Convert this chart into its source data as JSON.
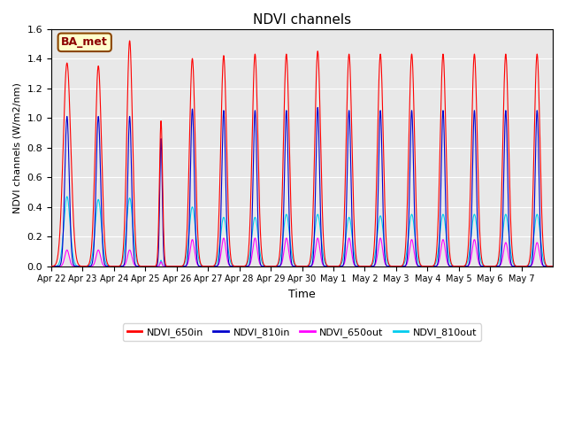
{
  "title": "NDVI channels",
  "xlabel": "Time",
  "ylabel": "NDVI channels (W/m2/nm)",
  "ylim": [
    0,
    1.6
  ],
  "background_color": "#e8e8e8",
  "annotation_text": "BA_met",
  "series": {
    "NDVI_650in": {
      "color": "#ff0000",
      "linewidth": 0.8
    },
    "NDVI_810in": {
      "color": "#0000cc",
      "linewidth": 0.8
    },
    "NDVI_650out": {
      "color": "#ff00ff",
      "linewidth": 0.8
    },
    "NDVI_810out": {
      "color": "#00ccee",
      "linewidth": 0.8
    }
  },
  "xtick_labels": [
    "Apr 22",
    "Apr 23",
    "Apr 24",
    "Apr 25",
    "Apr 26",
    "Apr 27",
    "Apr 28",
    "Apr 29",
    "Apr 30",
    "May 1",
    "May 2",
    "May 3",
    "May 4",
    "May 5",
    "May 6",
    "May 7"
  ],
  "num_days": 16,
  "h_650in": [
    1.37,
    1.35,
    1.52,
    0.98,
    1.4,
    1.42,
    1.43,
    1.43,
    1.45,
    1.43,
    1.43,
    1.43,
    1.43,
    1.43,
    1.43,
    1.43
  ],
  "h_810in": [
    1.01,
    1.01,
    1.01,
    0.86,
    1.06,
    1.05,
    1.05,
    1.05,
    1.07,
    1.05,
    1.05,
    1.05,
    1.05,
    1.05,
    1.05,
    1.05
  ],
  "h_650out": [
    0.11,
    0.11,
    0.11,
    0.03,
    0.18,
    0.19,
    0.19,
    0.19,
    0.19,
    0.19,
    0.19,
    0.18,
    0.18,
    0.18,
    0.16,
    0.16
  ],
  "h_810out": [
    0.47,
    0.45,
    0.46,
    0.04,
    0.4,
    0.33,
    0.33,
    0.35,
    0.35,
    0.33,
    0.34,
    0.35,
    0.35,
    0.35,
    0.35,
    0.35
  ],
  "w_650in": [
    0.12,
    0.1,
    0.09,
    0.05,
    0.09,
    0.09,
    0.09,
    0.09,
    0.09,
    0.09,
    0.09,
    0.09,
    0.09,
    0.09,
    0.09,
    0.09
  ],
  "w_810in": [
    0.07,
    0.07,
    0.06,
    0.04,
    0.06,
    0.06,
    0.06,
    0.06,
    0.06,
    0.06,
    0.06,
    0.06,
    0.06,
    0.06,
    0.06,
    0.06
  ],
  "w_650out": [
    0.07,
    0.07,
    0.07,
    0.03,
    0.07,
    0.07,
    0.07,
    0.07,
    0.07,
    0.07,
    0.07,
    0.07,
    0.07,
    0.07,
    0.07,
    0.07
  ],
  "w_810out": [
    0.1,
    0.1,
    0.1,
    0.03,
    0.1,
    0.1,
    0.1,
    0.1,
    0.1,
    0.1,
    0.1,
    0.1,
    0.1,
    0.1,
    0.1,
    0.1
  ],
  "peak_pos": [
    0.5,
    0.5,
    0.5,
    0.5,
    0.5,
    0.5,
    0.5,
    0.5,
    0.5,
    0.5,
    0.5,
    0.5,
    0.5,
    0.5,
    0.5,
    0.5
  ]
}
